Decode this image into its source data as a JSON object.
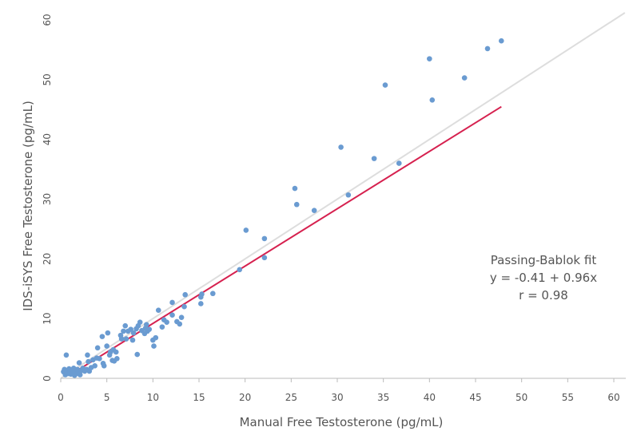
{
  "chart_data": {
    "type": "scatter",
    "xlabel": "Manual Free Testosterone (pg/mL)",
    "ylabel": "IDS-iSYS Free Testosterone (pg/mL)",
    "xlim": [
      0,
      60
    ],
    "ylim": [
      0,
      60
    ],
    "x_ticks": [
      "0",
      "5",
      "10",
      "15",
      "20",
      "25",
      "30",
      "35",
      "40",
      "45",
      "50",
      "55",
      "60"
    ],
    "y_ticks": [
      "0",
      "10",
      "20",
      "30",
      "40",
      "50",
      "60"
    ],
    "grid": false,
    "annotation": [
      "Passing-Bablok fit",
      "y = -0.41 + 0.96x",
      "r = 0.98"
    ],
    "colors": {
      "points": "#6a9bd1",
      "fit_line": "#d6214f",
      "identity_line": "#dddddd",
      "axis": "#bbbbbb",
      "text": "#555555"
    },
    "fit": {
      "intercept": -0.41,
      "slope": 0.96,
      "x_range": [
        1.8,
        47.8
      ]
    },
    "identity": {
      "x_range": [
        0,
        61.2
      ]
    },
    "points": [
      [
        0.3,
        1.1
      ],
      [
        0.4,
        1.5
      ],
      [
        0.5,
        0.6
      ],
      [
        0.6,
        3.9
      ],
      [
        0.7,
        1.3
      ],
      [
        0.8,
        0.8
      ],
      [
        0.9,
        1.6
      ],
      [
        1.0,
        1.1
      ],
      [
        1.1,
        0.7
      ],
      [
        1.2,
        1.4
      ],
      [
        1.3,
        0.9
      ],
      [
        1.4,
        1.7
      ],
      [
        1.5,
        0.5
      ],
      [
        1.6,
        1.2
      ],
      [
        1.7,
        0.8
      ],
      [
        1.8,
        1.5
      ],
      [
        1.9,
        1.0
      ],
      [
        2.0,
        2.6
      ],
      [
        2.1,
        0.6
      ],
      [
        2.2,
        1.3
      ],
      [
        2.4,
        1.7
      ],
      [
        2.6,
        1.2
      ],
      [
        2.8,
        1.5
      ],
      [
        2.9,
        3.9
      ],
      [
        3.0,
        2.8
      ],
      [
        3.1,
        1.2
      ],
      [
        3.3,
        1.8
      ],
      [
        3.5,
        3.1
      ],
      [
        3.7,
        2.1
      ],
      [
        3.9,
        3.4
      ],
      [
        4.0,
        5.1
      ],
      [
        4.2,
        3.3
      ],
      [
        4.5,
        7.0
      ],
      [
        4.6,
        2.5
      ],
      [
        4.7,
        2.1
      ],
      [
        5.0,
        5.4
      ],
      [
        5.1,
        7.6
      ],
      [
        5.3,
        3.9
      ],
      [
        5.4,
        4.4
      ],
      [
        5.6,
        3.0
      ],
      [
        5.7,
        4.8
      ],
      [
        5.8,
        2.9
      ],
      [
        6.0,
        4.4
      ],
      [
        6.1,
        3.3
      ],
      [
        6.5,
        7.2
      ],
      [
        6.6,
        6.6
      ],
      [
        6.8,
        7.9
      ],
      [
        7.0,
        8.8
      ],
      [
        7.1,
        6.6
      ],
      [
        7.3,
        7.9
      ],
      [
        7.6,
        8.2
      ],
      [
        7.8,
        6.4
      ],
      [
        7.9,
        7.6
      ],
      [
        8.2,
        8.3
      ],
      [
        8.3,
        4.0
      ],
      [
        8.4,
        8.8
      ],
      [
        8.6,
        9.4
      ],
      [
        8.8,
        8.0
      ],
      [
        9.1,
        7.5
      ],
      [
        9.2,
        8.4
      ],
      [
        9.3,
        9.0
      ],
      [
        9.4,
        7.9
      ],
      [
        9.6,
        8.2
      ],
      [
        10.0,
        6.4
      ],
      [
        10.1,
        5.4
      ],
      [
        10.3,
        6.8
      ],
      [
        10.6,
        11.4
      ],
      [
        11.0,
        8.6
      ],
      [
        11.2,
        9.8
      ],
      [
        11.5,
        9.4
      ],
      [
        12.1,
        12.7
      ],
      [
        12.1,
        10.6
      ],
      [
        12.6,
        9.5
      ],
      [
        12.9,
        9.1
      ],
      [
        13.1,
        10.2
      ],
      [
        13.4,
        12.0
      ],
      [
        13.5,
        14.0
      ],
      [
        15.2,
        12.5
      ],
      [
        15.2,
        13.6
      ],
      [
        15.3,
        14.1
      ],
      [
        16.5,
        14.2
      ],
      [
        19.4,
        18.2
      ],
      [
        20.1,
        24.8
      ],
      [
        22.1,
        20.2
      ],
      [
        22.1,
        23.4
      ],
      [
        25.4,
        31.8
      ],
      [
        25.6,
        29.1
      ],
      [
        27.5,
        28.1
      ],
      [
        30.4,
        38.7
      ],
      [
        31.2,
        30.7
      ],
      [
        34.0,
        36.8
      ],
      [
        35.2,
        49.1
      ],
      [
        36.7,
        36.0
      ],
      [
        40.0,
        53.5
      ],
      [
        40.3,
        46.6
      ],
      [
        43.8,
        50.3
      ],
      [
        46.3,
        55.2
      ],
      [
        47.8,
        56.5
      ]
    ]
  }
}
